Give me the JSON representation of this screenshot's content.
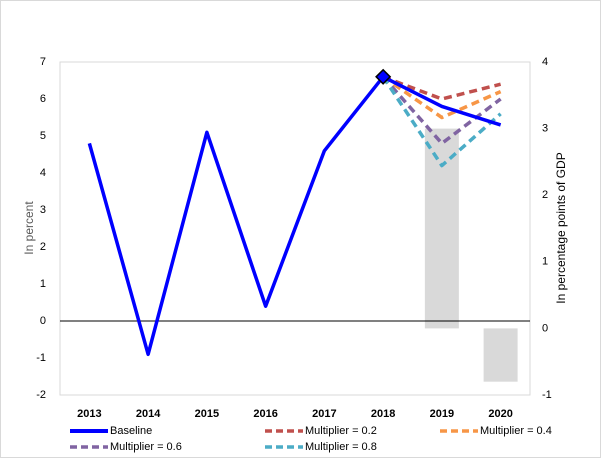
{
  "chart_data": {
    "type": "line",
    "categories": [
      "2013",
      "2014",
      "2015",
      "2016",
      "2017",
      "2018",
      "2019",
      "2020"
    ],
    "ylabel": "In percent",
    "y2label": "In percentage points of GDP",
    "ylim": [
      -2,
      7
    ],
    "yticks": [
      -2,
      -1,
      0,
      1,
      2,
      3,
      4,
      5,
      6,
      7
    ],
    "y2lim": [
      -1,
      4
    ],
    "y2ticks": [
      -1,
      0,
      1,
      2,
      3,
      4
    ],
    "series": [
      {
        "name": "Baseline",
        "color": "#0000ff",
        "values": [
          4.8,
          -0.9,
          5.1,
          0.4,
          4.6,
          6.6,
          5.8,
          5.3
        ]
      },
      {
        "name": "Multiplier = 0.2",
        "color": "#c0504d",
        "values": [
          null,
          null,
          null,
          null,
          null,
          6.6,
          6.0,
          6.4
        ]
      },
      {
        "name": "Multiplier = 0.4",
        "color": "#f79646",
        "values": [
          null,
          null,
          null,
          null,
          null,
          6.6,
          5.5,
          6.2
        ]
      },
      {
        "name": "Multiplier = 0.6",
        "color": "#8064a2",
        "values": [
          null,
          null,
          null,
          null,
          null,
          6.6,
          4.8,
          6.0
        ]
      },
      {
        "name": "Multiplier = 0.8",
        "color": "#4bacc6",
        "values": [
          null,
          null,
          null,
          null,
          null,
          6.6,
          4.2,
          5.6
        ]
      }
    ],
    "bars": {
      "axis": "y2",
      "color": "#d9d9d9",
      "values": [
        null,
        null,
        null,
        null,
        null,
        null,
        3.0,
        -0.8
      ]
    }
  }
}
